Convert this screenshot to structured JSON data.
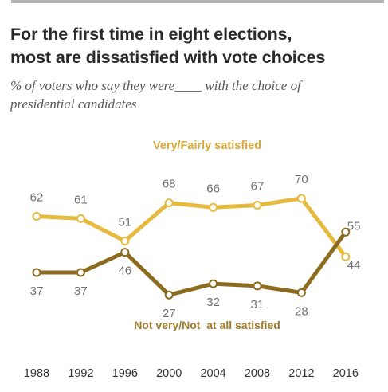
{
  "title_line1": "For the first time in eight elections,",
  "title_line2": "most are dissatisfied with vote choices",
  "subtitle_line1": "% of voters who say they were____ with the choice of",
  "subtitle_line2": "presidential candidates",
  "colors": {
    "satisfied": "#E6B93F",
    "dissatisfied": "#8C6B1F",
    "satisfied_label": "#D9A93A",
    "dissatisfied_label": "#A07C2A",
    "axis_text": "#333333",
    "value_text": "#707070"
  },
  "chart_data": {
    "type": "line",
    "x": [
      "1988",
      "1992",
      "1996",
      "2000",
      "2004",
      "2008",
      "2012",
      "2016"
    ],
    "series": [
      {
        "name": "Very/Fairly satisfied",
        "values": [
          62,
          61,
          51,
          68,
          66,
          67,
          70,
          44
        ]
      },
      {
        "name": "Not very/Not  at all satisfied",
        "values": [
          37,
          37,
          46,
          27,
          32,
          31,
          28,
          55
        ]
      }
    ],
    "ylim": [
      20,
      75
    ],
    "grid": false,
    "legend": "inline labels"
  }
}
